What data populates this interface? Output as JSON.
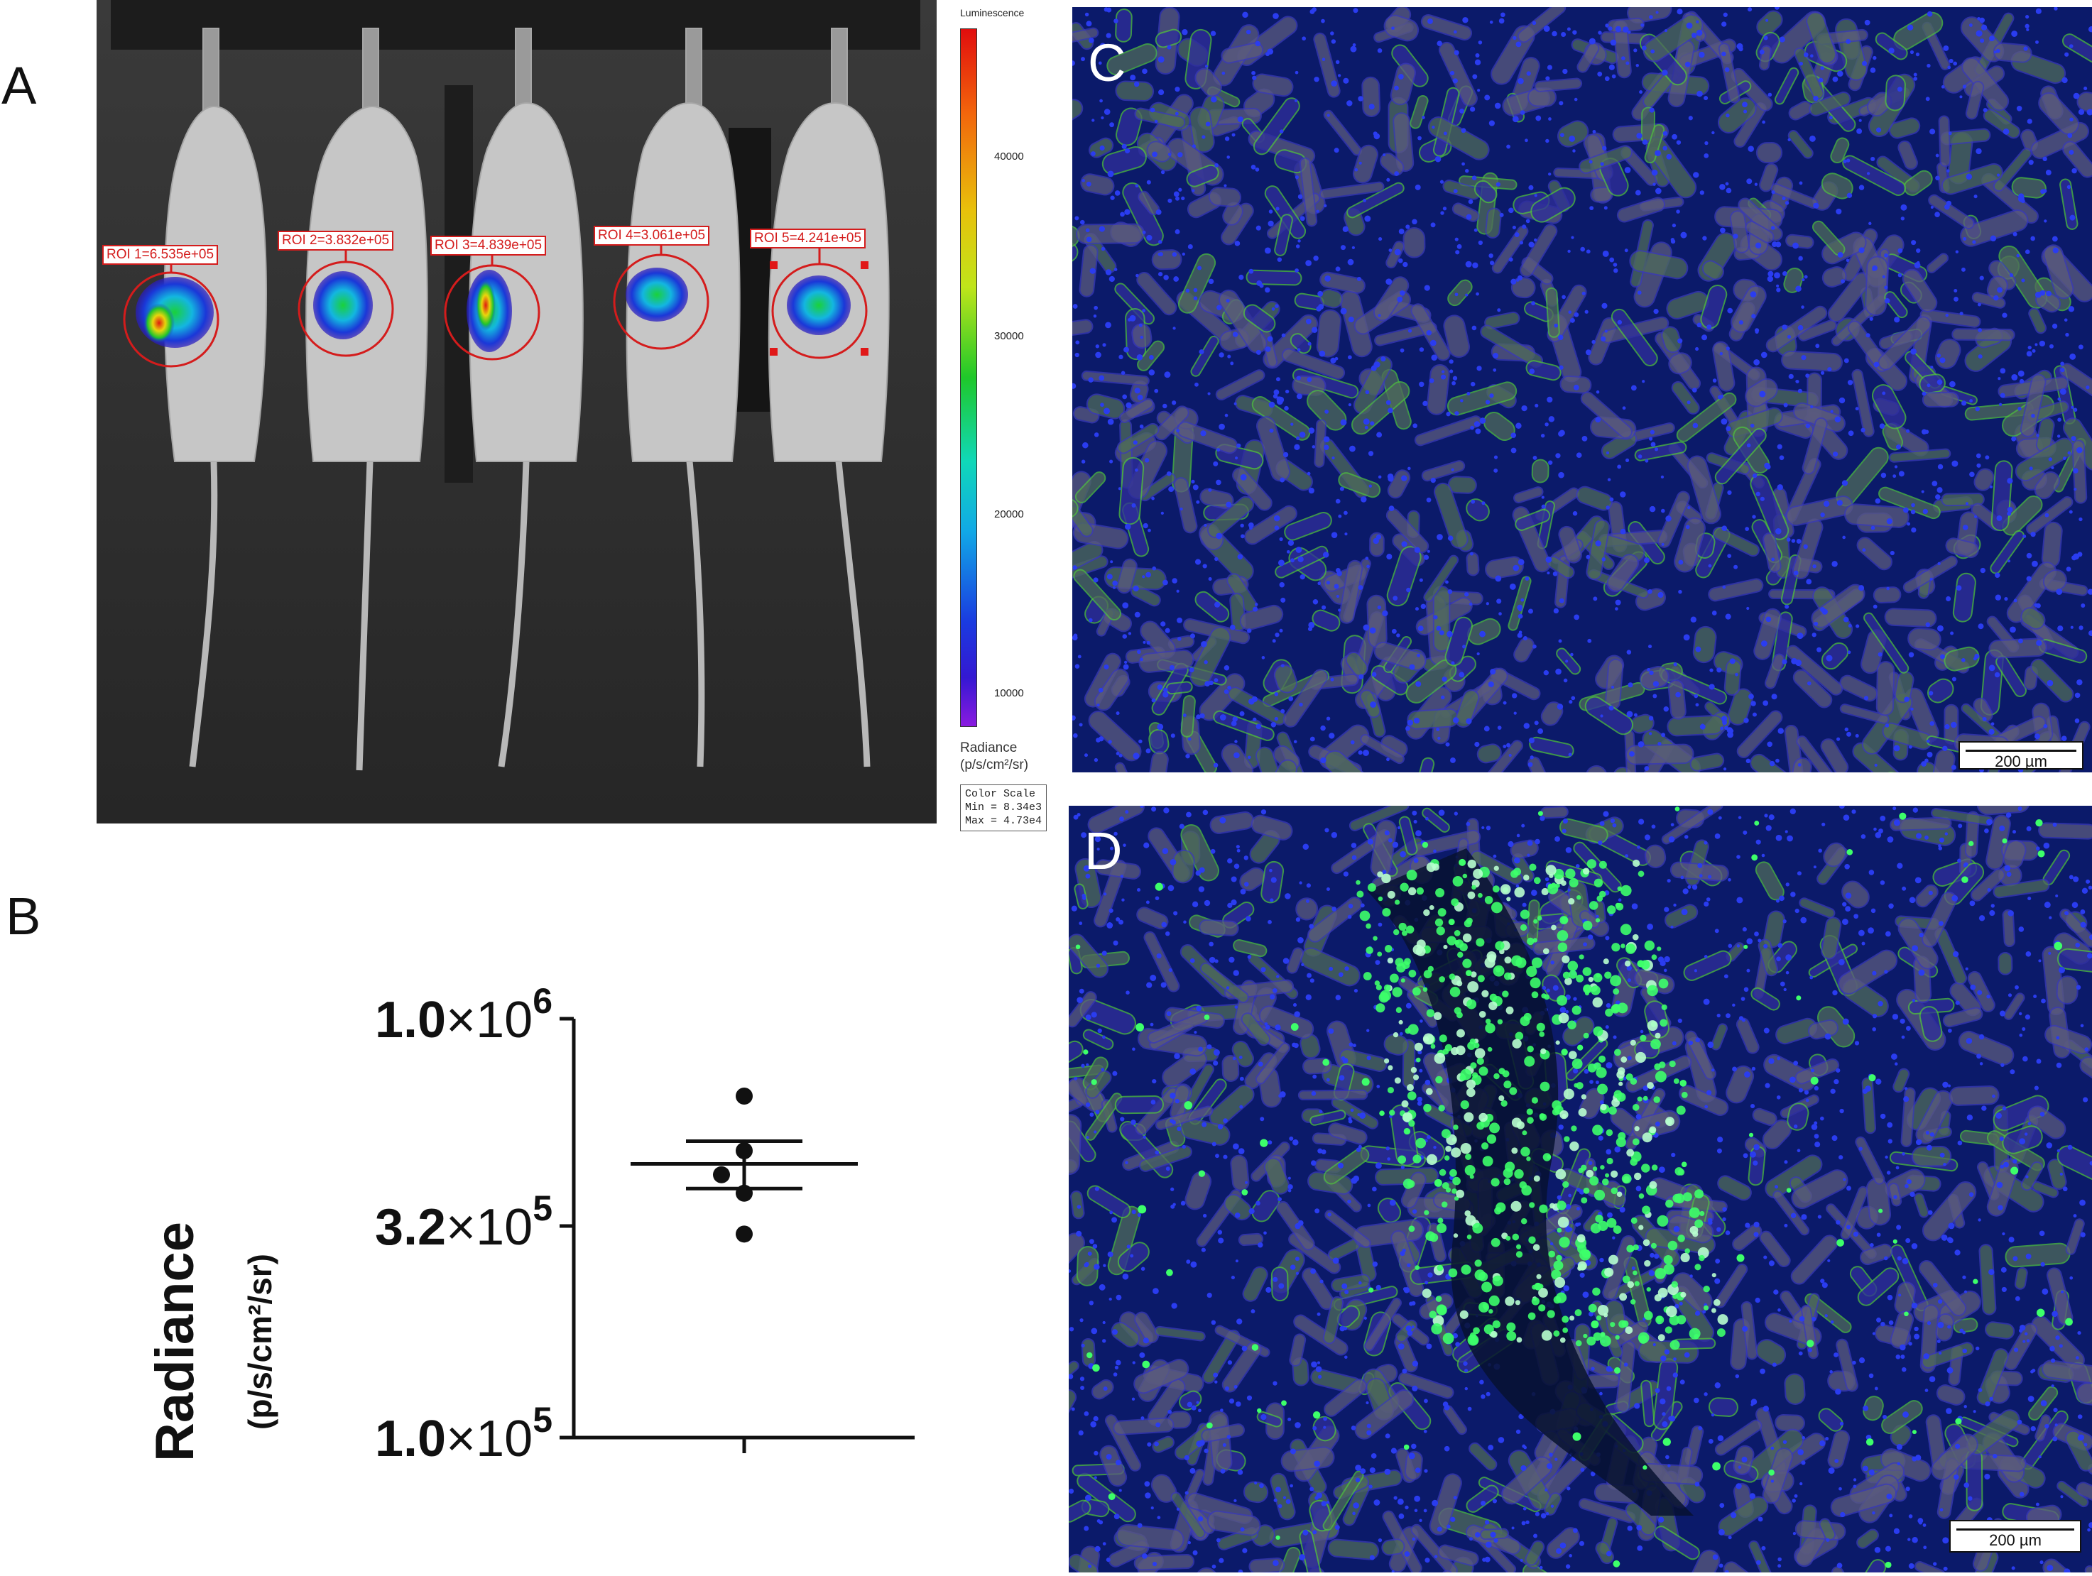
{
  "panels": {
    "a": {
      "letter": "A",
      "rois": [
        {
          "label": "ROI 1=6.535e+05"
        },
        {
          "label": "ROI 2=3.832e+05"
        },
        {
          "label": "ROI 3=4.839e+05"
        },
        {
          "label": "ROI 4=3.061e+05"
        },
        {
          "label": "ROI 5=4.241e+05"
        }
      ],
      "colorbar": {
        "title": "Luminescence",
        "ticks": [
          "40000",
          "30000",
          "20000",
          "10000"
        ],
        "unit_line1": "Radiance",
        "unit_line2": "(p/s/cm²/sr)",
        "scale_title": "Color Scale",
        "scale_min": "Min = 8.34e3",
        "scale_max": "Max = 4.73e4"
      }
    },
    "b": {
      "letter": "B"
    },
    "c": {
      "letter": "C",
      "scalebar": "200 µm"
    },
    "d": {
      "letter": "D",
      "scalebar": "200 µm"
    }
  },
  "chart_data": {
    "type": "scatter",
    "ylabel": "Radiance",
    "ylabel_unit": "(p/s/cm²/sr)",
    "yscale": "log",
    "ylim": [
      100000,
      1000000
    ],
    "y_ticks": [
      {
        "value": 1000000,
        "mantissa": "1.0",
        "times": "×10",
        "exp": "6"
      },
      {
        "value": 320000,
        "mantissa": "3.2",
        "times": "×10",
        "exp": "5"
      },
      {
        "value": 100000,
        "mantissa": "1.0",
        "times": "×10",
        "exp": "5"
      }
    ],
    "points": [
      653500,
      383200,
      483900,
      306100,
      424100
    ],
    "mean": 450200,
    "sem_upper": 510000,
    "sem_lower": 393000,
    "grid": false
  }
}
